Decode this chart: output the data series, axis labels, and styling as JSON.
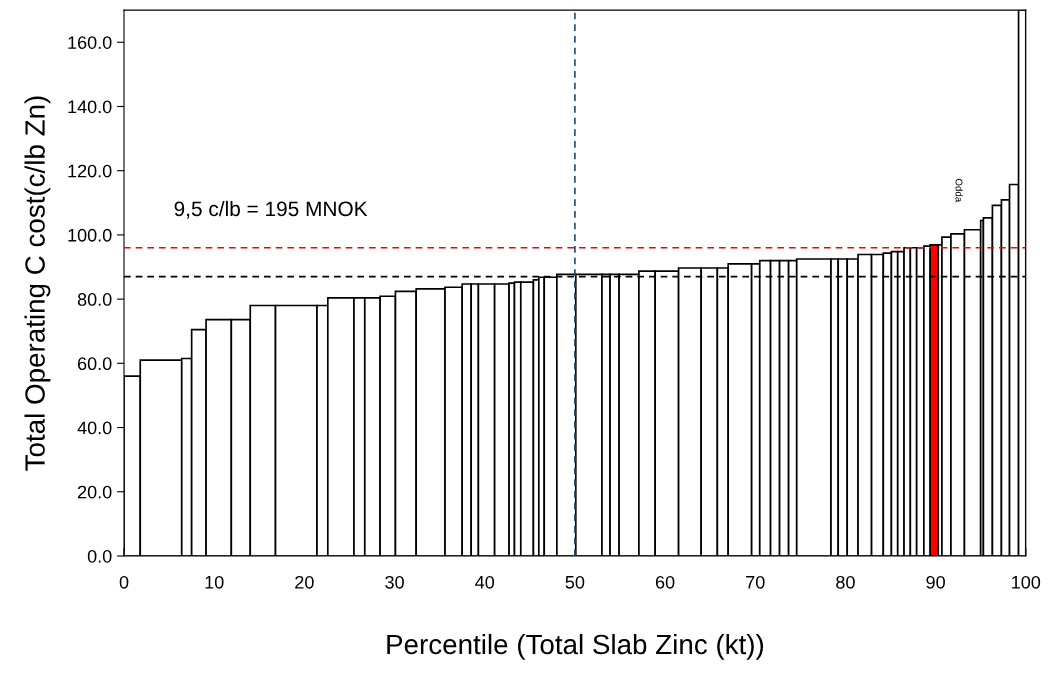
{
  "chart_data": {
    "type": "bar",
    "xlabel": "Percentile (Total Slab Zinc (kt))",
    "ylabel": "Total Operating C cost(c/lb Zn)",
    "x": [
      0.9,
      4.1,
      6.95,
      8.3,
      10.5,
      12.95,
      15.4,
      19.1,
      22.0,
      24.05,
      26.1,
      27.55,
      29.25,
      31.25,
      34.0,
      36.55,
      38.0,
      38.9,
      40.2,
      41.9,
      43.0,
      43.65,
      44.7,
      45.7,
      46.3,
      47.3,
      49.05,
      51.55,
      53.45,
      54.4,
      56.0,
      58.0,
      60.2,
      62.75,
      64.9,
      66.4,
      68.3,
      70.05,
      71.1,
      72.2,
      73.2,
      74.15,
      76.5,
      78.8,
      79.7,
      80.8,
      82.15,
      83.55,
      84.65,
      85.45,
      86.15,
      86.85,
      87.55,
      88.3,
      89.05,
      89.85,
      90.5,
      91.2,
      92.45,
      94.1,
      95.15,
      95.8,
      96.8,
      97.75,
      98.7,
      99.6
    ],
    "values": [
      56,
      61,
      61.5,
      70.5,
      73.6,
      73.6,
      78,
      78,
      78,
      80.4,
      80.4,
      80.4,
      80.9,
      82.4,
      83.2,
      83.7,
      84.7,
      84.7,
      84.7,
      84.7,
      85.0,
      85.3,
      85.3,
      86.0,
      86.8,
      86.8,
      87.7,
      87.7,
      87.7,
      87.7,
      87.7,
      88.7,
      88.7,
      89.7,
      89.7,
      89.7,
      91.0,
      91.0,
      92.0,
      92.0,
      92.0,
      92.0,
      92.5,
      92.5,
      92.5,
      92.5,
      93.9,
      93.9,
      94.3,
      94.8,
      94.8,
      96.0,
      96.0,
      96.0,
      96.5,
      96.9,
      96.9,
      99.3,
      100.3,
      101.6,
      104.5,
      105.3,
      109.2,
      110.9,
      115.7,
      170
    ],
    "colors": [
      "#ffffff",
      "#ffffff",
      "#ffffff",
      "#ffffff",
      "#ffffff",
      "#ffffff",
      "#ffffff",
      "#ffffff",
      "#ffffff",
      "#ffffff",
      "#ffffff",
      "#ffffff",
      "#ffffff",
      "#ffffff",
      "#ffffff",
      "#ffffff",
      "#ffffff",
      "#ffffff",
      "#ffffff",
      "#ffffff",
      "#ffffff",
      "#ffffff",
      "#ffffff",
      "#ffffff",
      "#ffffff",
      "#ffffff",
      "#ffffff",
      "#ffffff",
      "#ffffff",
      "#ffffff",
      "#ffffff",
      "#ffffff",
      "#ffffff",
      "#ffffff",
      "#ffffff",
      "#ffffff",
      "#ffffff",
      "#ffffff",
      "#ffffff",
      "#ffffff",
      "#ffffff",
      "#ffffff",
      "#ffffff",
      "#ffffff",
      "#ffffff",
      "#ffffff",
      "#ffffff",
      "#ffffff",
      "#ffffff",
      "#ffffff",
      "#ffffff",
      "#ffffff",
      "#ffffff",
      "#ffffff",
      "#ffffff",
      "#ff0000",
      "#ffffff",
      "#ffffff",
      "#ffffff",
      "#ffffff",
      "#ffffff",
      "#ffffff",
      "#ffffff",
      "#ffffff",
      "#ffffff",
      "#ffffff"
    ],
    "xlim": [
      0,
      100
    ],
    "xticks": [
      0,
      10,
      20,
      30,
      40,
      50,
      60,
      70,
      80,
      90,
      100
    ],
    "ylim": [
      0,
      170
    ],
    "yticks": [
      {
        "value": 0,
        "label": "0.0"
      },
      {
        "value": 20,
        "label": "20.0"
      },
      {
        "value": 40,
        "label": "40.0"
      },
      {
        "value": 60,
        "label": "60.0"
      },
      {
        "value": 80,
        "label": "80.0"
      },
      {
        "value": 100,
        "label": "100.0"
      },
      {
        "value": 120,
        "label": "120.0"
      },
      {
        "value": 140,
        "label": "140.0"
      },
      {
        "value": 160,
        "label": "160.0"
      }
    ],
    "ref_lines": [
      {
        "axis": "y",
        "value": 96.0,
        "color": "#ff0000",
        "line_style": "dashed"
      },
      {
        "axis": "y",
        "value": 87.0,
        "color": "#000000",
        "line_style": "dashed"
      },
      {
        "axis": "x",
        "value": 50,
        "color": "#1f4e79",
        "line_style": "dashed"
      }
    ],
    "annotations": [
      "9,5 c/lb = 195 MNOK",
      "Odda"
    ],
    "grid": false,
    "legend": false
  }
}
